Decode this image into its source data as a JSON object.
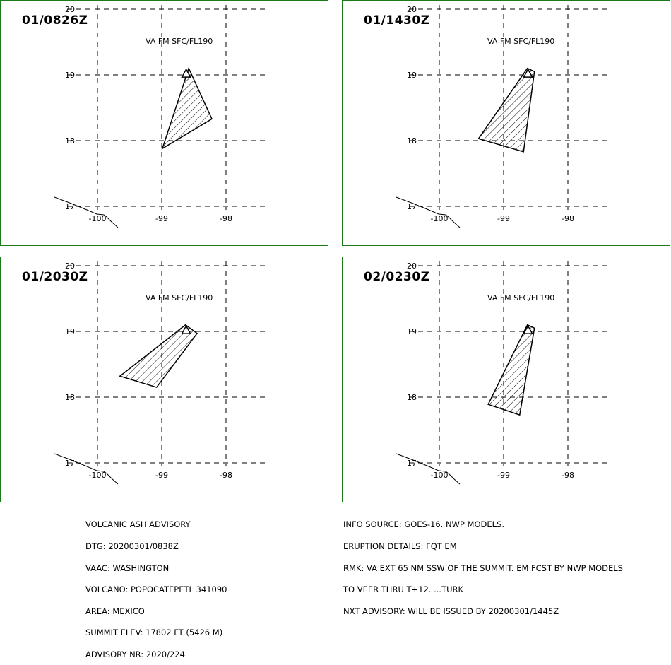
{
  "panels": [
    {
      "time": "01/0826Z",
      "va_label": "VA FM SFC/FL190",
      "ash_cloud": [
        [
          -98.58,
          19.1
        ],
        [
          -98.22,
          18.33
        ],
        [
          -98.99,
          17.88
        ]
      ]
    },
    {
      "time": "01/1430Z",
      "va_label": "VA FM SFC/FL190",
      "ash_cloud": [
        [
          -98.63,
          19.1
        ],
        [
          -98.52,
          19.05
        ],
        [
          -98.69,
          17.83
        ],
        [
          -99.39,
          18.03
        ]
      ]
    },
    {
      "time": "01/2030Z",
      "va_label": "VA FM SFC/FL190",
      "ash_cloud": [
        [
          -98.63,
          19.1
        ],
        [
          -98.45,
          18.97
        ],
        [
          -99.08,
          18.15
        ],
        [
          -99.65,
          18.32
        ]
      ]
    },
    {
      "time": "02/0230Z",
      "va_label": "VA FM SFC/FL190",
      "ash_cloud": [
        [
          -98.63,
          19.1
        ],
        [
          -98.52,
          19.05
        ],
        [
          -98.75,
          17.73
        ],
        [
          -99.24,
          17.89
        ]
      ]
    }
  ],
  "map": {
    "lat_ticks": [
      "20",
      "19",
      "18",
      "17"
    ],
    "lon_ticks": [
      "-100",
      "-99",
      "-98"
    ],
    "volcano": {
      "lon": -98.62,
      "lat": 19.02
    }
  },
  "advisory": {
    "left_lines": [
      "VOLCANIC ASH ADVISORY",
      "DTG: 20200301/0838Z",
      "VAAC: WASHINGTON",
      "VOLCANO: POPOCATEPETL 341090",
      "AREA: MEXICO",
      "SUMMIT ELEV: 17802 FT (5426 M)",
      "ADVISORY NR: 2020/224"
    ],
    "right_lines": [
      "INFO SOURCE: GOES-16. NWP MODELS.",
      "ERUPTION DETAILS: FQT EM",
      "RMK: VA EXT 65 NM SSW OF THE SUMMIT. EM FCST BY NWP MODELS",
      "TO VEER THRU T+12. ...TURK",
      "NXT ADVISORY: WILL BE ISSUED BY 20200301/1445Z"
    ]
  },
  "colors": {
    "border": "#1a7a1a",
    "lines": "#000000"
  }
}
